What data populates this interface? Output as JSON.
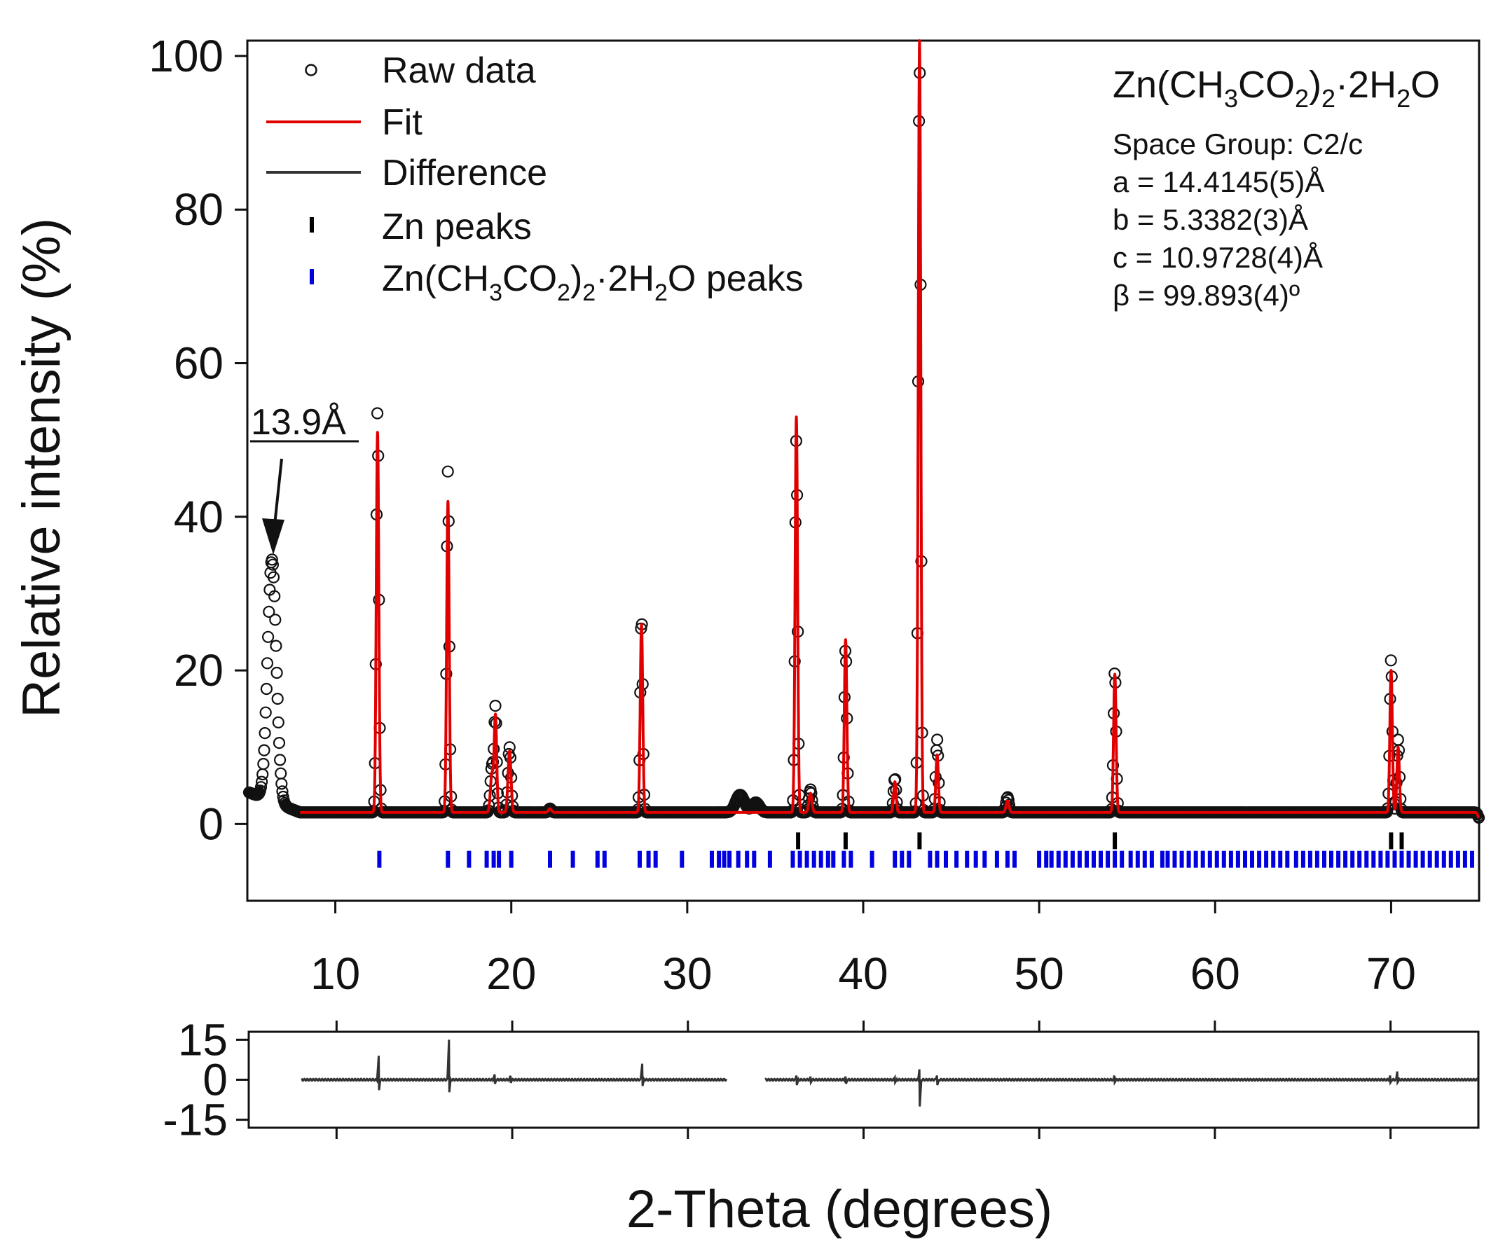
{
  "chart_data": [
    {
      "type": "scatter",
      "panel": "main",
      "title": "",
      "xlabel": "",
      "ylabel": "Relative intensity (%)",
      "xlim": [
        5,
        75
      ],
      "ylim": [
        -10,
        102
      ],
      "x_ticks": [
        10,
        20,
        30,
        40,
        50,
        60,
        70
      ],
      "x_tick_labels": [
        "10",
        "20",
        "30",
        "40",
        "50",
        "60",
        "70"
      ],
      "y_ticks": [
        0,
        20,
        40,
        60,
        80,
        100
      ],
      "y_tick_labels": [
        "0",
        "20",
        "40",
        "60",
        "80",
        "100"
      ],
      "grid": false,
      "legend": {
        "placement": "top-left",
        "entries": [
          {
            "label": "Raw data",
            "marker": "open-circle",
            "color": "#000000"
          },
          {
            "label": "Fit",
            "marker": "line",
            "color": "#e00000"
          },
          {
            "label": "Difference",
            "marker": "line",
            "color": "#333333"
          },
          {
            "label": "Zn peaks",
            "marker": "vertical-tick",
            "color": "#000000"
          },
          {
            "label_main": "Zn(CH",
            "label_sub1": "3",
            "label_mid1": "CO",
            "label_sub2": "2",
            "label_mid2": ")",
            "label_sub3": "2",
            "label_mid3": "·2H",
            "label_sub4": "2",
            "label_end": "O peaks",
            "marker": "vertical-tick",
            "color": "#0000e0"
          }
        ]
      },
      "info_box": {
        "formula": {
          "p1": "Zn(CH",
          "s1": "3",
          "p2": "CO",
          "s2": "2",
          "p3": ")",
          "s3": "2",
          "p4": "·2H",
          "s4": "2",
          "p5": "O"
        },
        "lines": [
          "Space Group: C2/c",
          "a = 14.4145(5)Å",
          "b = 5.3382(3)Å",
          "c = 10.9728(4)Å",
          "β = 99.893(4)º"
        ]
      },
      "annotation": {
        "text": "13.9Å",
        "points_to_x": 6.2,
        "points_to_y": 35
      },
      "background_level": 1.5,
      "excluded_region": [
        32.2,
        34.4
      ],
      "peaks": [
        {
          "x": 6.4,
          "raw": 33,
          "fit": null,
          "width": 0.35
        },
        {
          "x": 12.4,
          "raw": 54,
          "fit": 51,
          "width": 0.1
        },
        {
          "x": 16.4,
          "raw": 46,
          "fit": 42,
          "width": 0.1
        },
        {
          "x": 18.9,
          "raw": 7.5,
          "fit": 6.5,
          "width": 0.12
        },
        {
          "x": 19.1,
          "raw": 15,
          "fit": 14,
          "width": 0.1
        },
        {
          "x": 19.9,
          "raw": 10,
          "fit": 9.5,
          "width": 0.12
        },
        {
          "x": 22.2,
          "raw": 2,
          "fit": 2,
          "width": 0.12
        },
        {
          "x": 25.0,
          "raw": 1.5,
          "fit": 1.5,
          "width": 0.12
        },
        {
          "x": 27.4,
          "raw": 27,
          "fit": 26,
          "width": 0.1
        },
        {
          "x": 33.0,
          "raw": 3.8,
          "fit": null,
          "width": 0.35
        },
        {
          "x": 33.9,
          "raw": 2.8,
          "fit": null,
          "width": 0.3
        },
        {
          "x": 36.2,
          "raw": 50,
          "fit": 53,
          "width": 0.1
        },
        {
          "x": 37.0,
          "raw": 4.5,
          "fit": 4,
          "width": 0.12
        },
        {
          "x": 39.0,
          "raw": 23,
          "fit": 24,
          "width": 0.1
        },
        {
          "x": 41.8,
          "raw": 6,
          "fit": 5.5,
          "width": 0.1
        },
        {
          "x": 43.2,
          "raw": 100,
          "fit": 102,
          "width": 0.1
        },
        {
          "x": 44.2,
          "raw": 11,
          "fit": 9,
          "width": 0.1
        },
        {
          "x": 48.2,
          "raw": 3.5,
          "fit": 3,
          "width": 0.12
        },
        {
          "x": 54.3,
          "raw": 20,
          "fit": 19.5,
          "width": 0.1
        },
        {
          "x": 59.1,
          "raw": 1.5,
          "fit": 1.5,
          "width": 0.6
        },
        {
          "x": 70.0,
          "raw": 21.5,
          "fit": 20,
          "width": 0.1
        },
        {
          "x": 70.4,
          "raw": 11,
          "fit": 10,
          "width": 0.1
        },
        {
          "x": 75.0,
          "raw": 0.8,
          "fit": 0.8,
          "width": 0.1
        }
      ],
      "zn_peak_positions": [
        36.3,
        39.0,
        43.2,
        54.3,
        70.0,
        70.6
      ],
      "zn_acetate_peak_positions": [
        12.5,
        16.4,
        17.6,
        18.6,
        19.0,
        19.3,
        20.0,
        22.2,
        23.5,
        24.9,
        25.3,
        27.3,
        27.8,
        28.2,
        29.7,
        31.4,
        31.8,
        32.1,
        32.4,
        32.9,
        33.4,
        33.8,
        34.7,
        36.0,
        36.4,
        36.8,
        37.2,
        37.6,
        38.0,
        38.3,
        38.9,
        39.3,
        40.5,
        41.8,
        42.2,
        42.6,
        43.8,
        44.2,
        44.7,
        45.3,
        45.9,
        46.4,
        46.9,
        47.6,
        48.2,
        48.6,
        50.0,
        50.4,
        50.7,
        51.1,
        51.5,
        51.9,
        52.3,
        52.7,
        53.1,
        53.5,
        53.9,
        54.3,
        54.7,
        55.2,
        55.6,
        56.0,
        56.4,
        57.0,
        57.3,
        57.7,
        58.1,
        58.5,
        58.9,
        59.3,
        59.7,
        60.1,
        60.5,
        60.9,
        61.3,
        61.7,
        62.1,
        62.5,
        62.9,
        63.3,
        63.7,
        64.1,
        64.6,
        65.0,
        65.4,
        65.8,
        66.2,
        66.6,
        67.0,
        67.4,
        67.8,
        68.2,
        68.6,
        69.0,
        69.4,
        69.8,
        70.2,
        70.6,
        71.0,
        71.4,
        71.8,
        72.2,
        72.6,
        73.0,
        73.4,
        73.8,
        74.2,
        74.6
      ]
    },
    {
      "type": "line",
      "panel": "difference",
      "title": "",
      "xlabel": "2-Theta (degrees)",
      "ylabel": "",
      "xlim": [
        5,
        75
      ],
      "ylim": [
        -18,
        18
      ],
      "y_ticks": [
        15,
        0,
        -15
      ],
      "y_tick_labels": [
        "15",
        "0",
        "-15"
      ],
      "grid": false,
      "segments": [
        [
          8.0,
          32.2
        ],
        [
          34.4,
          75.0
        ]
      ],
      "spikes": [
        {
          "x": 12.4,
          "high": 9,
          "low": -5
        },
        {
          "x": 16.4,
          "high": 15,
          "low": -6
        },
        {
          "x": 19.0,
          "high": 2,
          "low": -2
        },
        {
          "x": 19.9,
          "high": 1.5,
          "low": -1.5
        },
        {
          "x": 27.4,
          "high": 6,
          "low": -3
        },
        {
          "x": 36.2,
          "high": 2,
          "low": -2
        },
        {
          "x": 37.0,
          "high": 1.5,
          "low": -1
        },
        {
          "x": 39.0,
          "high": 1.5,
          "low": -1.5
        },
        {
          "x": 41.8,
          "high": 1,
          "low": -1
        },
        {
          "x": 43.2,
          "high": 5,
          "low": -10
        },
        {
          "x": 44.2,
          "high": 2,
          "low": -2
        },
        {
          "x": 54.3,
          "high": 2,
          "low": -1
        },
        {
          "x": 70.0,
          "high": 2,
          "low": -1
        },
        {
          "x": 70.4,
          "high": 4,
          "low": -1
        }
      ]
    }
  ]
}
